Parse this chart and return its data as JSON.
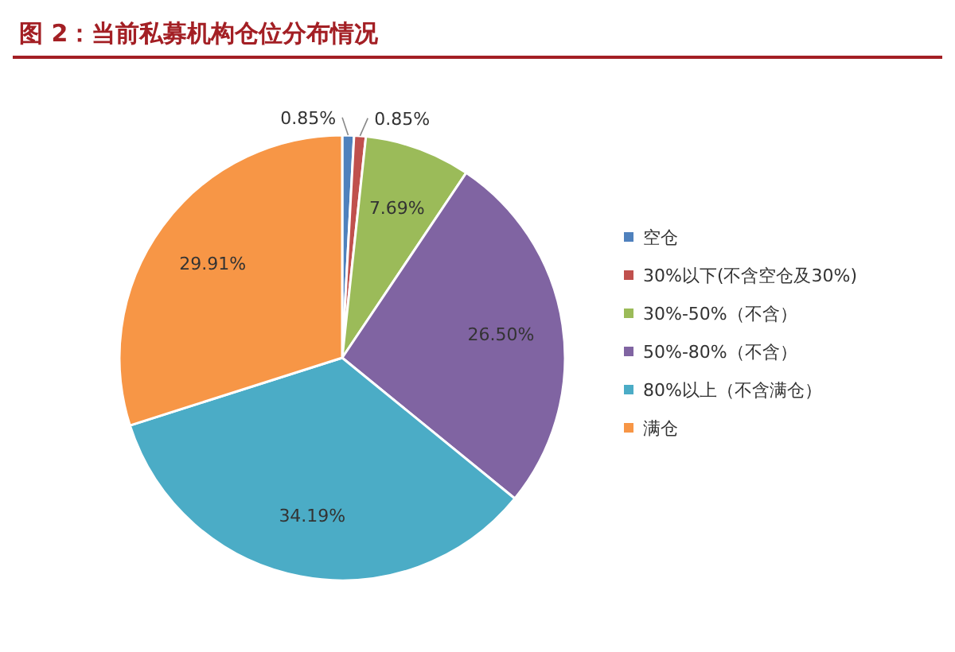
{
  "chart_data": {
    "type": "pie",
    "title": "图 2：当前私募机构仓位分布情况",
    "categories": [
      "空仓",
      "30%以下(不含空仓及30%)",
      "30%-50%（不含）",
      "50%-80%（不含）",
      "80%以上（不含满仓）",
      "满仓"
    ],
    "values": [
      0.85,
      0.85,
      7.69,
      26.5,
      34.19,
      29.91
    ],
    "value_labels": [
      "0.85%",
      "0.85%",
      "7.69%",
      "26.50%",
      "34.19%",
      "29.91%"
    ],
    "colors": [
      "#4f81bd",
      "#c0504d",
      "#9bbb59",
      "#8064a2",
      "#4bacc6",
      "#f79646"
    ],
    "legend": "right"
  }
}
